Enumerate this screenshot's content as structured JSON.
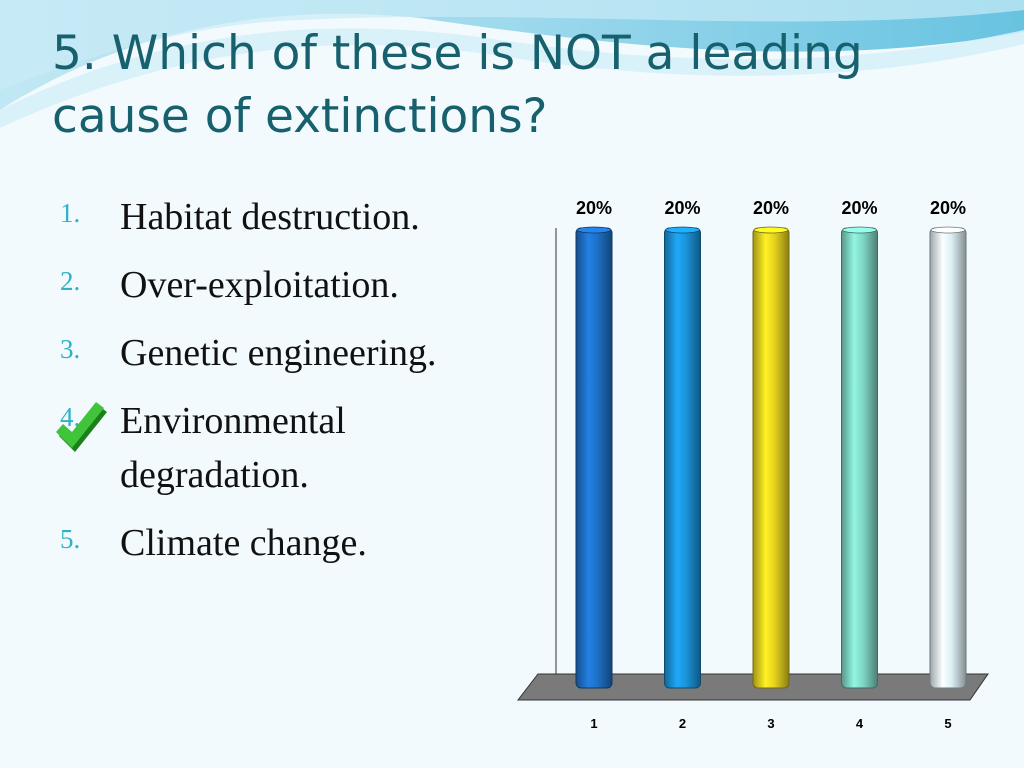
{
  "slide": {
    "question": "5. Which of these is NOT a leading cause of extinctions?",
    "answers": [
      {
        "number": "1.",
        "text": "Habitat destruction."
      },
      {
        "number": "2.",
        "text": "Over-exploitation."
      },
      {
        "number": "3.",
        "text": "Genetic engineering."
      },
      {
        "number": "4.",
        "text": "Environmental degradation."
      },
      {
        "number": "5.",
        "text": "Climate change."
      }
    ],
    "correct_answer_index": 3,
    "check_icon": "checkmark-icon",
    "colors": {
      "title": "#17606e",
      "number": "#2fb1c8",
      "check": "#2aa628"
    }
  },
  "chart_data": {
    "type": "bar",
    "categories": [
      "1",
      "2",
      "3",
      "4",
      "5"
    ],
    "values": [
      20,
      20,
      20,
      20,
      20
    ],
    "value_labels": [
      "20%",
      "20%",
      "20%",
      "20%",
      "20%"
    ],
    "ylim": [
      0,
      20
    ],
    "colors": [
      "#1e6fc6",
      "#1a93d9",
      "#e4d21e",
      "#7fd6c4",
      "#dceff4"
    ],
    "style": "3d-cylinder",
    "grid": false,
    "legend": "none"
  }
}
